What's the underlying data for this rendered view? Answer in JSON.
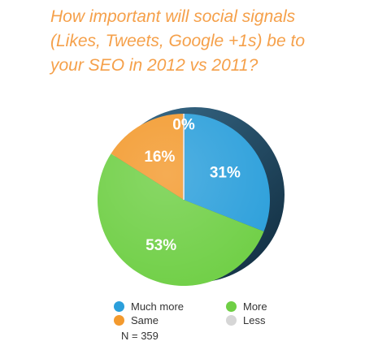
{
  "title_lines": [
    "How important will social signals",
    "(Likes, Tweets, Google +1s) be to",
    "your SEO in 2012 vs 2011?"
  ],
  "chart_data": {
    "type": "pie",
    "title": "How important will social signals (Likes, Tweets, Google +1s) be to your SEO in 2012 vs 2011?",
    "slices": [
      {
        "name": "Much more",
        "value": 31,
        "label": "31%",
        "color": "#2b9fdb"
      },
      {
        "name": "More",
        "value": 53,
        "label": "53%",
        "color": "#6fcf45"
      },
      {
        "name": "Same",
        "value": 16,
        "label": "16%",
        "color": "#f39a2e"
      },
      {
        "name": "Less",
        "value": 0,
        "label": "0%",
        "color": "#d6d6d6"
      }
    ],
    "legend_position": "bottom"
  },
  "legend": {
    "much_more": "Much more",
    "more": "More",
    "same": "Same",
    "less": "Less"
  },
  "note": "N = 359"
}
